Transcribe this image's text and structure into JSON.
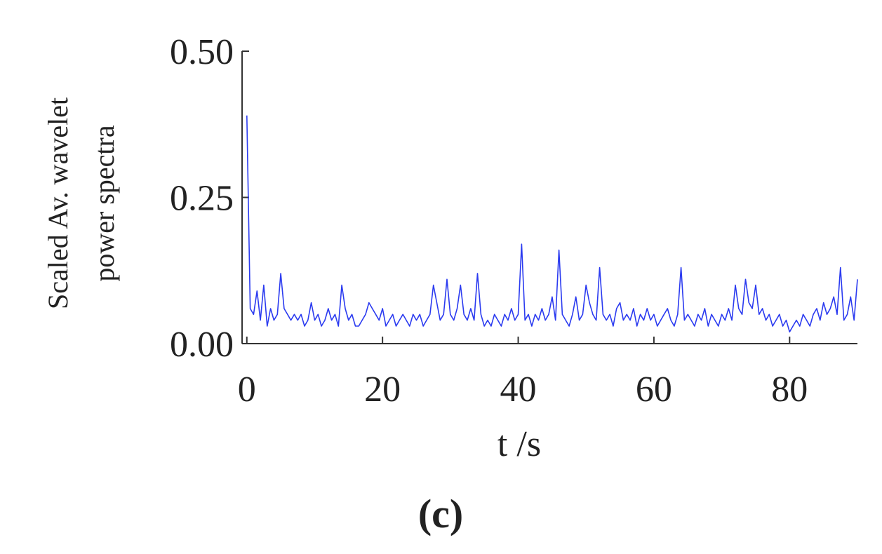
{
  "chart_data": {
    "type": "line",
    "ylabel": [
      "Scaled Av. wavelet",
      "power spectra"
    ],
    "xlabel": "t /s",
    "caption": "(c)",
    "xlim": [
      -0.7,
      90
    ],
    "ylim": [
      0,
      0.5
    ],
    "xticks": [
      0,
      20,
      40,
      60,
      80
    ],
    "yticks": [
      {
        "value": 0,
        "label": "0.00"
      },
      {
        "value": 0.25,
        "label": "0.25"
      },
      {
        "value": 0.5,
        "label": "0.50"
      }
    ],
    "x": [
      0,
      0.5,
      1,
      1.5,
      2,
      2.5,
      3,
      3.5,
      4,
      4.5,
      5,
      5.5,
      6,
      6.5,
      7,
      7.5,
      8,
      8.5,
      9,
      9.5,
      10,
      10.5,
      11,
      11.5,
      12,
      12.5,
      13,
      13.5,
      14,
      14.5,
      15,
      15.5,
      16,
      16.5,
      17,
      17.5,
      18,
      18.5,
      19,
      19.5,
      20,
      20.5,
      21,
      21.5,
      22,
      22.5,
      23,
      23.5,
      24,
      24.5,
      25,
      25.5,
      26,
      26.5,
      27,
      27.5,
      28,
      28.5,
      29,
      29.5,
      30,
      30.5,
      31,
      31.5,
      32,
      32.5,
      33,
      33.5,
      34,
      34.5,
      35,
      35.5,
      36,
      36.5,
      37,
      37.5,
      38,
      38.5,
      39,
      39.5,
      40,
      40.5,
      41,
      41.5,
      42,
      42.5,
      43,
      43.5,
      44,
      44.5,
      45,
      45.5,
      46,
      46.5,
      47,
      47.5,
      48,
      48.5,
      49,
      49.5,
      50,
      50.5,
      51,
      51.5,
      52,
      52.5,
      53,
      53.5,
      54,
      54.5,
      55,
      55.5,
      56,
      56.5,
      57,
      57.5,
      58,
      58.5,
      59,
      59.5,
      60,
      60.5,
      61,
      61.5,
      62,
      62.5,
      63,
      63.5,
      64,
      64.5,
      65,
      65.5,
      66,
      66.5,
      67,
      67.5,
      68,
      68.5,
      69,
      69.5,
      70,
      70.5,
      71,
      71.5,
      72,
      72.5,
      73,
      73.5,
      74,
      74.5,
      75,
      75.5,
      76,
      76.5,
      77,
      77.5,
      78,
      78.5,
      79,
      79.5,
      80,
      80.5,
      81,
      81.5,
      82,
      82.5,
      83,
      83.5,
      84,
      84.5,
      85,
      85.5,
      86,
      86.5,
      87,
      87.5,
      88,
      88.5,
      89,
      89.5,
      90
    ],
    "series": [
      {
        "color": "#2b3bf0",
        "values": [
          0.39,
          0.06,
          0.05,
          0.09,
          0.04,
          0.1,
          0.03,
          0.06,
          0.04,
          0.05,
          0.12,
          0.06,
          0.05,
          0.04,
          0.05,
          0.04,
          0.05,
          0.03,
          0.04,
          0.07,
          0.04,
          0.05,
          0.03,
          0.04,
          0.06,
          0.04,
          0.05,
          0.03,
          0.1,
          0.06,
          0.04,
          0.05,
          0.03,
          0.03,
          0.04,
          0.05,
          0.07,
          0.06,
          0.05,
          0.04,
          0.06,
          0.03,
          0.04,
          0.05,
          0.03,
          0.04,
          0.05,
          0.04,
          0.03,
          0.05,
          0.04,
          0.05,
          0.03,
          0.04,
          0.05,
          0.1,
          0.07,
          0.04,
          0.05,
          0.11,
          0.05,
          0.04,
          0.06,
          0.1,
          0.05,
          0.04,
          0.06,
          0.04,
          0.12,
          0.05,
          0.03,
          0.04,
          0.03,
          0.05,
          0.04,
          0.03,
          0.05,
          0.04,
          0.06,
          0.04,
          0.05,
          0.17,
          0.04,
          0.05,
          0.03,
          0.05,
          0.04,
          0.06,
          0.04,
          0.05,
          0.08,
          0.04,
          0.16,
          0.05,
          0.04,
          0.03,
          0.05,
          0.08,
          0.04,
          0.05,
          0.1,
          0.07,
          0.05,
          0.04,
          0.13,
          0.05,
          0.04,
          0.05,
          0.03,
          0.06,
          0.07,
          0.04,
          0.05,
          0.04,
          0.06,
          0.03,
          0.05,
          0.04,
          0.06,
          0.04,
          0.05,
          0.03,
          0.04,
          0.05,
          0.06,
          0.04,
          0.03,
          0.05,
          0.13,
          0.04,
          0.05,
          0.04,
          0.03,
          0.05,
          0.04,
          0.06,
          0.03,
          0.05,
          0.04,
          0.03,
          0.05,
          0.04,
          0.06,
          0.04,
          0.1,
          0.06,
          0.05,
          0.11,
          0.07,
          0.06,
          0.1,
          0.05,
          0.06,
          0.04,
          0.05,
          0.03,
          0.04,
          0.05,
          0.03,
          0.04,
          0.02,
          0.03,
          0.04,
          0.03,
          0.05,
          0.04,
          0.03,
          0.05,
          0.06,
          0.04,
          0.07,
          0.05,
          0.06,
          0.08,
          0.05,
          0.13,
          0.04,
          0.05,
          0.08,
          0.04,
          0.11
        ]
      }
    ]
  }
}
